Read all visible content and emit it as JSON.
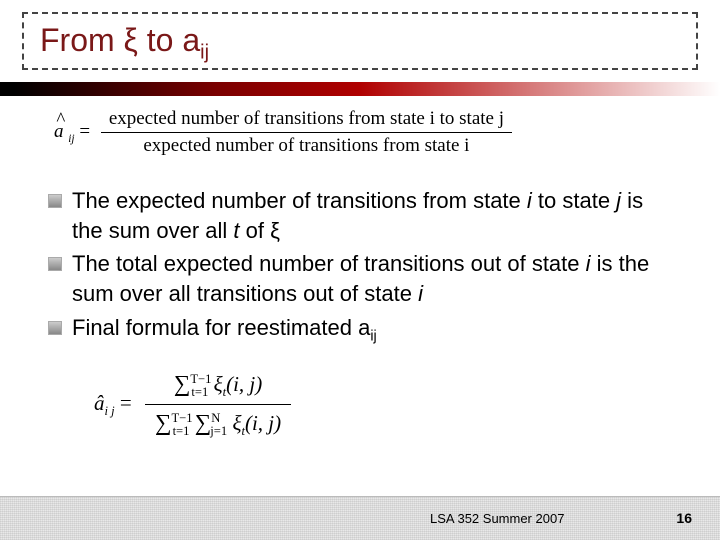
{
  "title": {
    "prefix": "From ",
    "xi": "ξ",
    "mid": " to a",
    "sub": "ij"
  },
  "formula1": {
    "lhs_hat": "^",
    "lhs_a": "a",
    "lhs_sub": "ij",
    "eq": " = ",
    "num": "expected number of transitions from state i to state j",
    "den": "expected number of transitions from state i"
  },
  "bullets": [
    {
      "parts": [
        {
          "t": "The expected number of transitions from state "
        },
        {
          "t": "i",
          "italic": true
        },
        {
          "t": " to state "
        },
        {
          "t": "j",
          "italic": true
        },
        {
          "t": " is the sum over all "
        },
        {
          "t": "t",
          "italic": true
        },
        {
          "t": " of ξ"
        }
      ]
    },
    {
      "parts": [
        {
          "t": "The total expected number of transitions out of state "
        },
        {
          "t": "i",
          "italic": true
        },
        {
          "t": " is the sum over all transitions out of state "
        },
        {
          "t": "i",
          "italic": true
        }
      ]
    },
    {
      "parts": [
        {
          "t": "Final formula for reestimated a"
        },
        {
          "t": "ij",
          "sub": true
        }
      ]
    }
  ],
  "formula2": {
    "lhs": "â",
    "lhs_sub": "i j",
    "eq": " = ",
    "num_sigma": "∑",
    "num_lower": "t=1",
    "num_upper": "T−1",
    "num_xi": " ξ",
    "num_xi_sub": "t",
    "num_args": "(i, j)",
    "den_sigma1": "∑",
    "den1_lower": "t=1",
    "den1_upper": "T−1",
    "den_sigma2": " ∑",
    "den2_lower": "j=1",
    "den2_upper": "N",
    "den_xi": " ξ",
    "den_xi_sub": "t",
    "den_args": "(i, j)"
  },
  "footer": {
    "text": "LSA 352 Summer 2007",
    "page": "16"
  },
  "colors": {
    "title_color": "#7a1818",
    "bar_gradient_start": "#000000",
    "bar_gradient_mid": "#b00000",
    "bar_gradient_end": "#ffffff"
  }
}
